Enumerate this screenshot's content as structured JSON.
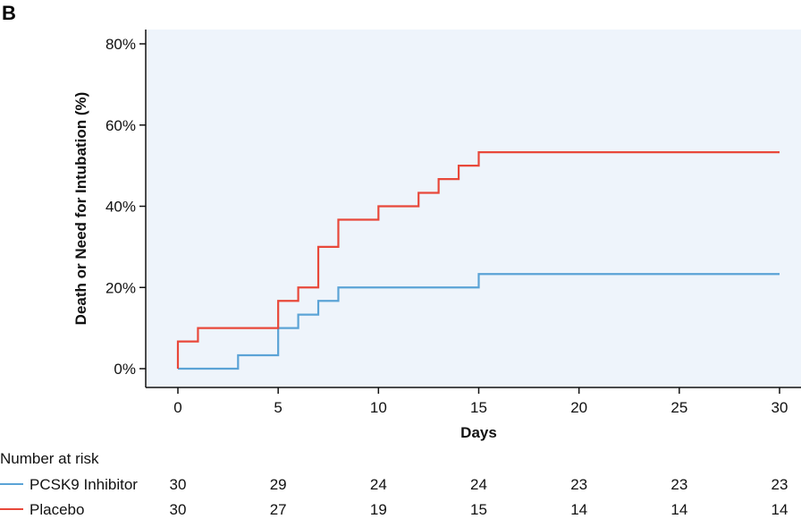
{
  "panel_label": "B",
  "colors": {
    "plot_bg": "#eef4fb",
    "pcsk9": "#5ba3d6",
    "placebo": "#e8483a",
    "axis": "#111111"
  },
  "chart_data": {
    "type": "line",
    "step": true,
    "xlabel": "Days",
    "ylabel": "Death or Need for Intubation (%)",
    "xlim": [
      0,
      30
    ],
    "ylim": [
      0,
      80
    ],
    "x_ticks": [
      0,
      5,
      10,
      15,
      20,
      25,
      30
    ],
    "x_tick_labels": [
      "0",
      "5",
      "10",
      "15",
      "20",
      "25",
      "30"
    ],
    "y_ticks": [
      0,
      20,
      40,
      60,
      80
    ],
    "y_tick_labels": [
      "0%",
      "20%",
      "40%",
      "60%",
      "80%"
    ],
    "series": [
      {
        "name": "PCSK9 Inhibitor",
        "color": "#5ba3d6",
        "x": [
          0,
          3,
          5,
          6,
          7,
          8,
          15,
          30
        ],
        "y": [
          0,
          3.3,
          10,
          13.3,
          16.7,
          20,
          23.3,
          23.3
        ]
      },
      {
        "name": "Placebo",
        "color": "#e8483a",
        "x": [
          0,
          1,
          5,
          6,
          7,
          8,
          10,
          12,
          13,
          14,
          15,
          30
        ],
        "y": [
          6.7,
          10,
          16.7,
          20,
          30,
          36.7,
          40,
          43.3,
          46.7,
          50,
          53.3,
          53.3
        ]
      }
    ]
  },
  "risk_table": {
    "title": "Number at risk",
    "timepoints": [
      0,
      5,
      10,
      15,
      20,
      25,
      30
    ],
    "rows": [
      {
        "name": "PCSK9 Inhibitor",
        "color": "#5ba3d6",
        "values": [
          "30",
          "29",
          "24",
          "24",
          "23",
          "23",
          "23"
        ]
      },
      {
        "name": "Placebo",
        "color": "#e8483a",
        "values": [
          "30",
          "27",
          "19",
          "15",
          "14",
          "14",
          "14"
        ]
      }
    ]
  }
}
